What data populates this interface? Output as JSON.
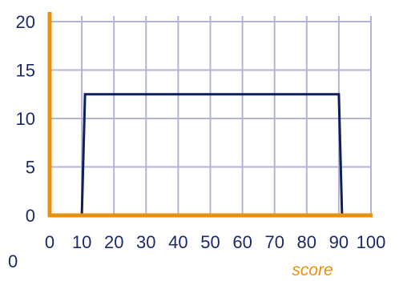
{
  "chart_data": {
    "type": "line",
    "xlabel": "score",
    "ylabel": "",
    "title": "",
    "xlim": [
      0,
      100
    ],
    "ylim": [
      0,
      20
    ],
    "x_ticks": [
      0,
      10,
      20,
      30,
      40,
      50,
      60,
      70,
      80,
      90,
      100
    ],
    "x_tick_labels": [
      "0",
      "10",
      "20",
      "30",
      "40",
      "50",
      "60",
      "70",
      "80",
      "90",
      "100"
    ],
    "y_ticks": [
      0,
      5,
      10,
      15,
      20
    ],
    "y_tick_labels": [
      "0",
      "5",
      "10",
      "15",
      "20"
    ],
    "origin_label": "0",
    "grid": true,
    "series": [
      {
        "x": [
          10,
          11,
          90,
          91
        ],
        "y": [
          0,
          12.5,
          12.5,
          0
        ]
      }
    ],
    "colors": {
      "axis": "#e8900c",
      "grid": "#b3b3d6",
      "line": "#0d1f5c",
      "tick_text": "#1a2a6c",
      "xlabel_text": "#e8900c"
    }
  }
}
